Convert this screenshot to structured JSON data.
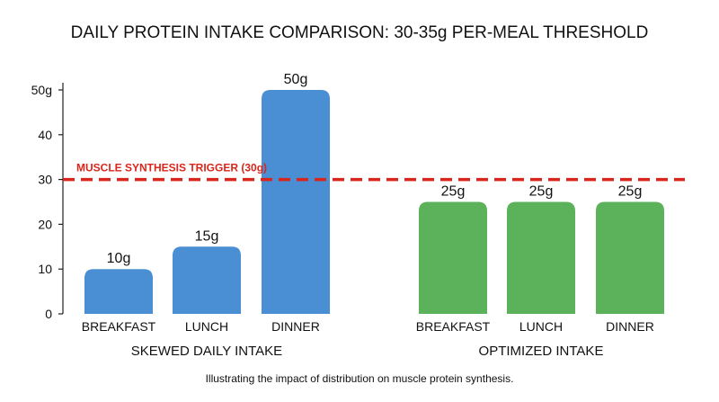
{
  "chart_data": {
    "type": "bar",
    "title": "DAILY PROTEIN INTAKE COMPARISON: 30-35g PER-MEAL THRESHOLD",
    "caption": "Illustrating the impact of distribution on muscle protein synthesis.",
    "ylim": [
      0,
      50
    ],
    "yticks": [
      "0",
      "10",
      "20",
      "30",
      "40",
      "50g"
    ],
    "ytick_values": [
      0,
      10,
      20,
      30,
      40,
      50
    ],
    "grid": false,
    "threshold": {
      "value": 30,
      "label": "MUSCLE SYNTHESIS TRIGGER (30g)",
      "color": "#d9261c"
    },
    "groups": [
      {
        "name": "SKEWED DAILY INTAKE",
        "color": "#4a8fd4",
        "categories": [
          "BREAKFAST",
          "LUNCH",
          "DINNER"
        ],
        "values": [
          10,
          15,
          50
        ],
        "labels": [
          "10g",
          "15g",
          "50g"
        ]
      },
      {
        "name": "OPTIMIZED INTAKE",
        "color": "#5cb15b",
        "categories": [
          "BREAKFAST",
          "LUNCH",
          "DINNER"
        ],
        "values": [
          25,
          25,
          25
        ],
        "labels": [
          "25g",
          "25g",
          "25g"
        ]
      }
    ]
  }
}
